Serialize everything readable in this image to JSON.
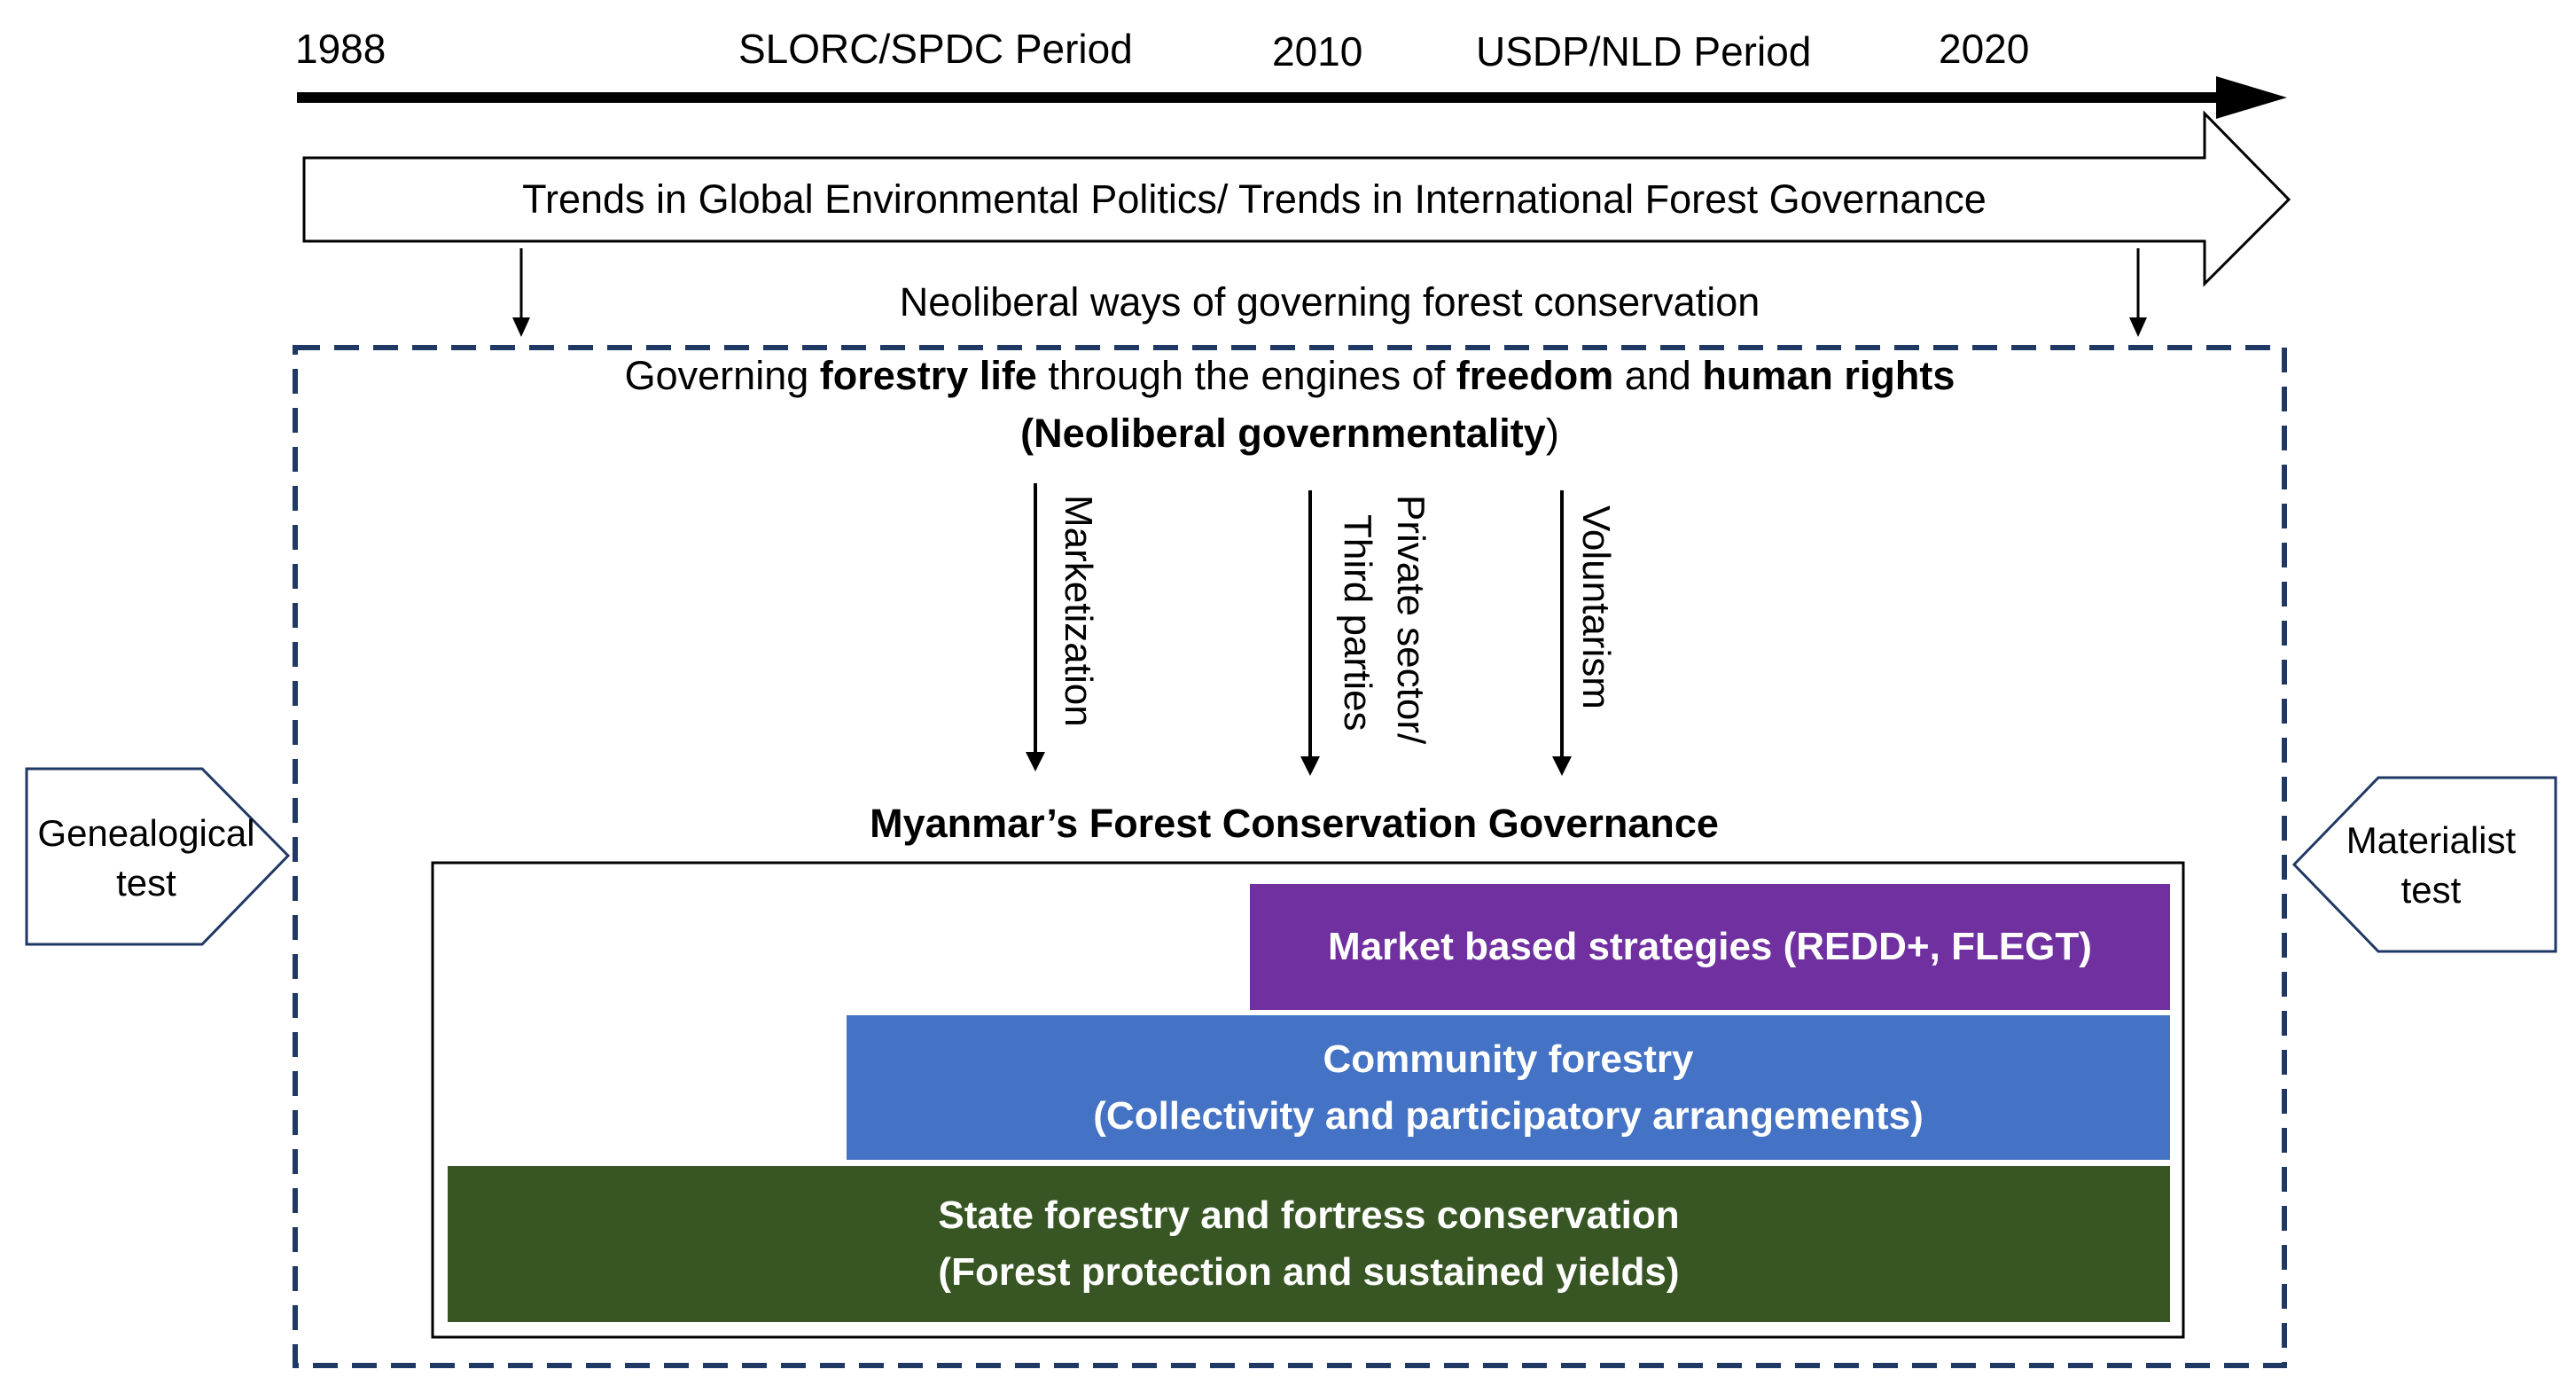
{
  "timeline": {
    "year_1988": "1988",
    "period_1": "SLORC/SPDC Period",
    "year_2010": "2010",
    "period_2": "USDP/NLD Period",
    "year_2020": "2020"
  },
  "trends_arrow": {
    "label": "Trends in Global Environmental Politics/ Trends in International Forest Governance"
  },
  "neoliberal_ways": "Neoliberal ways of governing forest conservation",
  "governing": {
    "t1": "Governing ",
    "b1": "forestry life",
    "t2": " through the engines of ",
    "b2": "freedom",
    "t3": " and ",
    "b3": "human rights",
    "line2_open": "(",
    "line2_bold": "Neoliberal governmentality",
    "line2_close": ")"
  },
  "mechanisms": {
    "marketization": "Marketization",
    "private_line1": "Private sector/",
    "private_line2": "Third parties",
    "voluntarism": "Voluntarism"
  },
  "governance_title": "Myanmar’s Forest Conservation Governance",
  "layers": {
    "market": {
      "label": "Market based strategies (REDD+, FLEGT)",
      "color": "#7030A0"
    },
    "community": {
      "line1": "Community forestry",
      "line2": "(Collectivity and participatory arrangements)",
      "color": "#4472C4"
    },
    "state": {
      "line1": "State forestry and fortress conservation",
      "line2": "(Forest protection and sustained yields)",
      "color": "#375623"
    }
  },
  "tests": {
    "genealogical_line1": "Genealogical",
    "genealogical_line2": "test",
    "materialist_line1": "Materialist",
    "materialist_line2": "test"
  },
  "colors": {
    "dashed_border": "#1F3864"
  }
}
